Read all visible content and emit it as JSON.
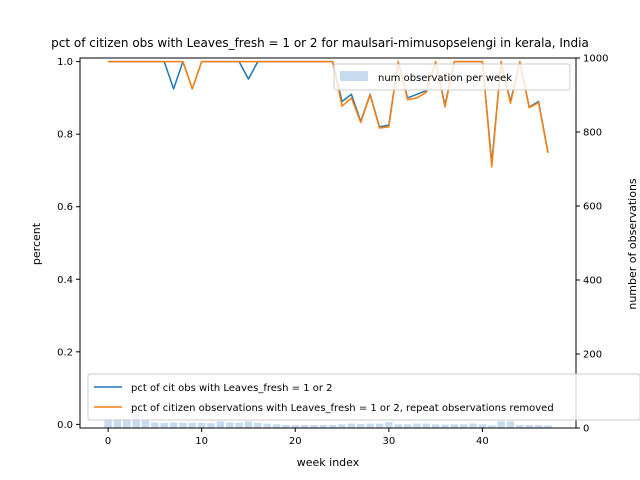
{
  "chart_data": {
    "type": "line",
    "title": "pct of citizen obs with Leaves_fresh = 1 or 2 for maulsari-mimusopselengi in kerala, India",
    "xlabel": "week index",
    "ylabel": "percent",
    "y2label": "number of observations",
    "xlim": [
      -3,
      50
    ],
    "ylim": [
      -0.01,
      1.01
    ],
    "y2lim": [
      0,
      1000
    ],
    "x_ticks": [
      0,
      10,
      20,
      30,
      40
    ],
    "y_ticks": [
      0.0,
      0.2,
      0.4,
      0.6,
      0.8,
      1.0
    ],
    "y2_ticks": [
      0,
      200,
      400,
      600,
      800,
      1000
    ],
    "x": [
      0,
      1,
      2,
      3,
      4,
      5,
      6,
      7,
      8,
      9,
      10,
      11,
      12,
      13,
      14,
      15,
      16,
      17,
      18,
      19,
      20,
      21,
      22,
      23,
      24,
      25,
      26,
      27,
      28,
      29,
      30,
      31,
      32,
      33,
      34,
      35,
      36,
      37,
      38,
      39,
      40,
      41,
      42,
      43,
      44,
      45,
      46,
      47
    ],
    "series": [
      {
        "name": "pct of cit obs with Leaves_fresh = 1 or 2",
        "color": "#1f77b4",
        "axis": "left",
        "values": [
          1.0,
          1.0,
          1.0,
          1.0,
          1.0,
          1.0,
          1.0,
          0.925,
          1.0,
          0.925,
          1.0,
          1.0,
          1.0,
          1.0,
          1.0,
          0.952,
          1.0,
          1.0,
          1.0,
          1.0,
          1.0,
          1.0,
          1.0,
          1.0,
          1.0,
          0.89,
          0.91,
          0.835,
          0.91,
          0.82,
          0.825,
          1.0,
          0.9,
          0.91,
          0.92,
          1.0,
          0.88,
          1.0,
          1.0,
          1.0,
          1.0,
          0.72,
          1.0,
          0.89,
          1.0,
          0.875,
          0.89,
          0.75
        ]
      },
      {
        "name": "pct of citizen observations with Leaves_fresh = 1 or 2, repeat observations removed",
        "color": "#ff7f0e",
        "axis": "left",
        "values": [
          1.0,
          1.0,
          1.0,
          1.0,
          1.0,
          1.0,
          1.0,
          1.0,
          1.0,
          0.925,
          1.0,
          1.0,
          1.0,
          1.0,
          1.0,
          1.0,
          1.0,
          1.0,
          1.0,
          1.0,
          1.0,
          1.0,
          1.0,
          1.0,
          1.0,
          0.877,
          0.9,
          0.832,
          0.908,
          0.817,
          0.82,
          1.0,
          0.895,
          0.9,
          0.915,
          1.0,
          0.875,
          1.0,
          1.0,
          1.0,
          1.0,
          0.71,
          1.0,
          0.885,
          1.0,
          0.873,
          0.887,
          0.748
        ]
      },
      {
        "name": "num observation per week",
        "color": "#c6dbef",
        "axis": "right",
        "type": "bar",
        "values": [
          28,
          24,
          24,
          48,
          20,
          15,
          14,
          15,
          14,
          14,
          14,
          13,
          18,
          15,
          14,
          18,
          14,
          12,
          10,
          8,
          8,
          8,
          8,
          8,
          8,
          10,
          12,
          11,
          12,
          12,
          16,
          10,
          10,
          12,
          12,
          10,
          9,
          10,
          10,
          12,
          10,
          7,
          18,
          18,
          8,
          8,
          8,
          7
        ]
      }
    ],
    "legend": {
      "placement": "lower-left and upper-right"
    }
  }
}
